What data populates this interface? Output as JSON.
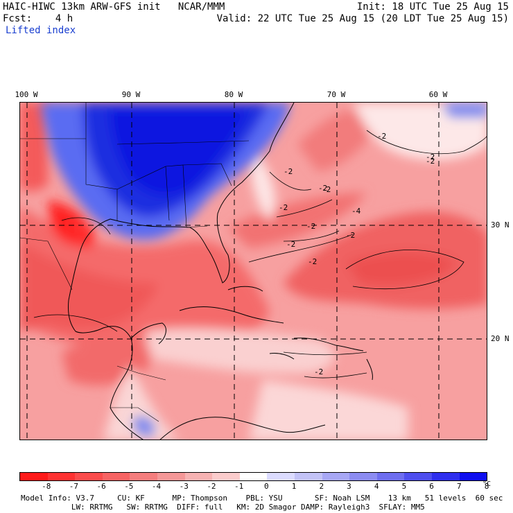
{
  "header": {
    "line1_left": "HAIC-HIWC 13km ARW-GFS init   NCAR/MMM",
    "line1_right": "Init: 18 UTC Tue 25 Aug 15",
    "line2_left": "Fcst:    4 h",
    "line2_right": "Valid: 22 UTC Tue 25 Aug 15 (20 LDT Tue 25 Aug 15)",
    "field_label": "Lifted index"
  },
  "map": {
    "lon_labels": [
      "100 W",
      "90 W",
      "80 W",
      "70 W",
      "60 W"
    ],
    "lat_labels": [
      "30 N",
      "20 N"
    ],
    "contour_labels": [
      "-2",
      "-2",
      "-2",
      "-2",
      "-2",
      "-2",
      "-4",
      "-2",
      "-2",
      "-2",
      "-2",
      "-2",
      "-2"
    ]
  },
  "colorbar": {
    "colors": [
      "#ff1a1a",
      "#ff3333",
      "#fb4d4d",
      "#f76464",
      "#f57e7e",
      "#f59898",
      "#f7b3b3",
      "#fbcccc",
      "#ffffff",
      "#dcdcff",
      "#c3c3f7",
      "#a8a8f5",
      "#8c8cf2",
      "#6e6ef0",
      "#4f4fef",
      "#2f2fee",
      "#0f0ff0"
    ],
    "ticks": [
      "-8",
      "-7",
      "-6",
      "-5",
      "-4",
      "-3",
      "-2",
      "-1",
      "0",
      "1",
      "2",
      "3",
      "4",
      "5",
      "6",
      "7",
      "8"
    ],
    "unit": "°C"
  },
  "footer": {
    "line1": "Model Info: V3.7     CU: KF      MP: Thompson    PBL: YSU       SF: Noah LSM    13 km   51 levels  60 sec",
    "line2": "           LW: RRTMG   SW: RRTMG  DIFF: full   KM: 2D Smagor DAMP: Rayleigh3  SFLAY: MM5"
  }
}
